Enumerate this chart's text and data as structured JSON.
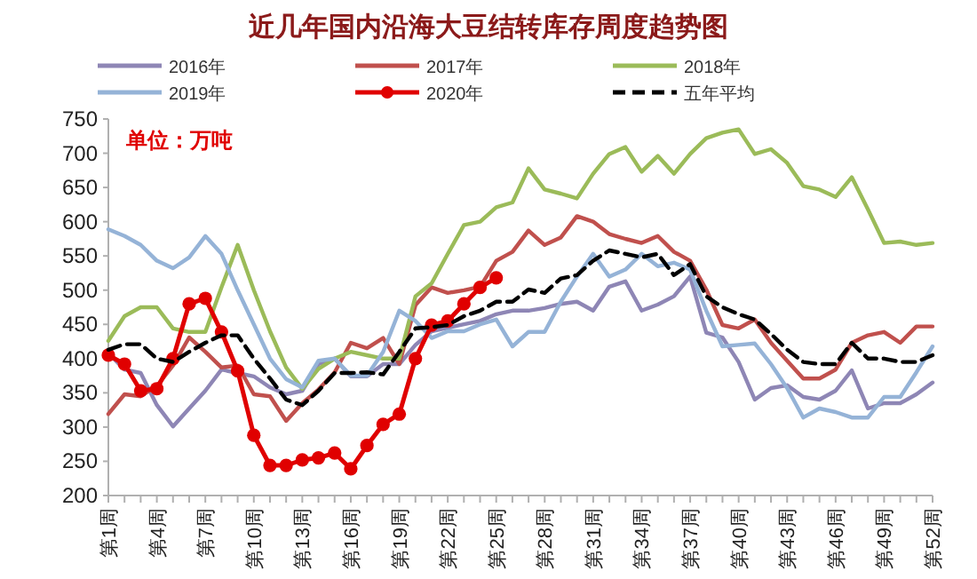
{
  "chart_data": {
    "type": "line",
    "title": "近几年国内沿海大豆结转库存周度趋势图",
    "annotations": [
      "单位：万吨"
    ],
    "categories": [
      "第1周",
      null,
      null,
      "第4周",
      null,
      null,
      "第7周",
      null,
      null,
      "第10周",
      null,
      null,
      "第13周",
      null,
      null,
      "第16周",
      null,
      null,
      "第19周",
      null,
      null,
      "第22周",
      null,
      null,
      "第25周",
      null,
      null,
      "第28周",
      null,
      null,
      "第31周",
      null,
      null,
      "第34周",
      null,
      null,
      "第37周",
      null,
      null,
      "第40周",
      null,
      null,
      "第43周",
      null,
      null,
      "第46周",
      null,
      null,
      "第49周",
      null,
      null,
      "第52周"
    ],
    "ylim": [
      200,
      750
    ],
    "yticks": [
      200,
      250,
      300,
      350,
      400,
      450,
      500,
      550,
      600,
      650,
      700,
      750
    ],
    "grid": false,
    "legend": "top",
    "marker": "none",
    "series": [
      {
        "name": "2016年",
        "color": "#8e86b5",
        "values": [
          408,
          384,
          379,
          332,
          301,
          327,
          353,
          384,
          379,
          374,
          358,
          348,
          353,
          392,
          400,
          374,
          374,
          392,
          392,
          420,
          440,
          445,
          450,
          455,
          465,
          470,
          470,
          474,
          480,
          483,
          470,
          505,
          513,
          470,
          479,
          491,
          520,
          438,
          431,
          395,
          340,
          357,
          361,
          344,
          340,
          353,
          383,
          327,
          335,
          335,
          348,
          365
        ]
      },
      {
        "name": "2017年",
        "color": "#c0504d",
        "values": [
          319,
          348,
          345,
          360,
          390,
          431,
          410,
          387,
          390,
          348,
          345,
          309,
          335,
          355,
          380,
          423,
          415,
          430,
          392,
          478,
          504,
          496,
          500,
          505,
          543,
          556,
          587,
          566,
          577,
          608,
          600,
          582,
          575,
          569,
          579,
          556,
          543,
          501,
          449,
          444,
          457,
          423,
          397,
          371,
          371,
          384,
          423,
          434,
          439,
          423,
          447,
          447
        ]
      },
      {
        "name": "2018年",
        "color": "#9bbb59",
        "values": [
          426,
          462,
          475,
          475,
          444,
          439,
          439,
          504,
          566,
          500,
          440,
          387,
          356,
          385,
          400,
          410,
          405,
          400,
          400,
          491,
          510,
          553,
          595,
          600,
          621,
          628,
          678,
          647,
          641,
          634,
          670,
          699,
          709,
          673,
          696,
          670,
          699,
          722,
          730,
          735,
          699,
          706,
          686,
          652,
          647,
          636,
          665,
          618,
          569,
          571,
          566,
          569
        ]
      },
      {
        "name": "2019年",
        "color": "#95b3d7",
        "values": [
          589,
          579,
          566,
          543,
          532,
          548,
          579,
          553,
          500,
          450,
          400,
          370,
          358,
          397,
          400,
          375,
          375,
          410,
          470,
          455,
          430,
          440,
          440,
          450,
          457,
          418,
          439,
          439,
          483,
          520,
          553,
          520,
          530,
          553,
          535,
          540,
          530,
          470,
          418,
          420,
          422,
          392,
          357,
          314,
          327,
          322,
          314,
          314,
          344,
          344,
          380,
          418
        ]
      },
      {
        "name": "2020年",
        "color": "#e00000",
        "marker": "circle",
        "values": [
          405,
          392,
          353,
          356,
          400,
          480,
          488,
          439,
          382,
          288,
          244,
          244,
          252,
          255,
          262,
          239,
          273,
          304,
          319,
          400,
          449,
          455,
          480,
          504,
          518,
          null,
          null,
          null,
          null,
          null,
          null,
          null,
          null,
          null,
          null,
          null,
          null,
          null,
          null,
          null,
          null,
          null,
          null,
          null,
          null,
          null,
          null,
          null,
          null,
          null,
          null,
          null
        ]
      },
      {
        "name": "五年平均",
        "color": "#000000",
        "line_style": "dashed",
        "values": [
          413,
          421,
          421,
          400,
          395,
          410,
          423,
          434,
          434,
          400,
          371,
          340,
          332,
          353,
          379,
          379,
          380,
          377,
          410,
          444,
          446,
          449,
          462,
          470,
          483,
          483,
          501,
          496,
          517,
          522,
          543,
          558,
          553,
          548,
          553,
          522,
          538,
          491,
          475,
          465,
          457,
          436,
          413,
          395,
          392,
          392,
          423,
          400,
          400,
          395,
          395,
          405
        ]
      }
    ]
  }
}
